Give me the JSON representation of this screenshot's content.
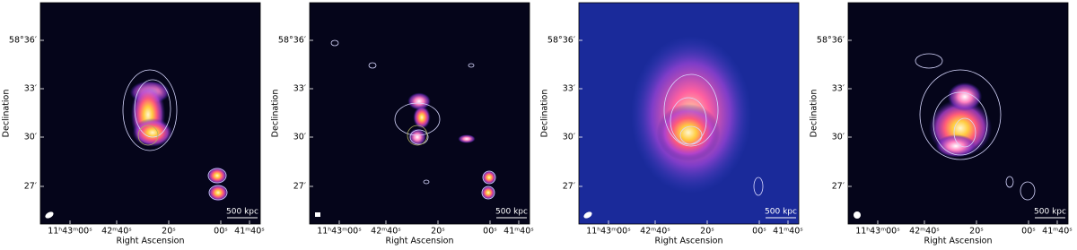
{
  "axes": {
    "ylabel": "Declination",
    "xlabel": "Right Ascension",
    "yticks": [
      "58°36′",
      "33′",
      "30′",
      "27′"
    ],
    "xticks": [
      "11ʰ43ᵐ00ˢ",
      "42ᵐ40ˢ",
      "20ˢ",
      "00ˢ",
      "41ᵐ40ˢ"
    ]
  },
  "scale_bar": "500 kpc"
}
